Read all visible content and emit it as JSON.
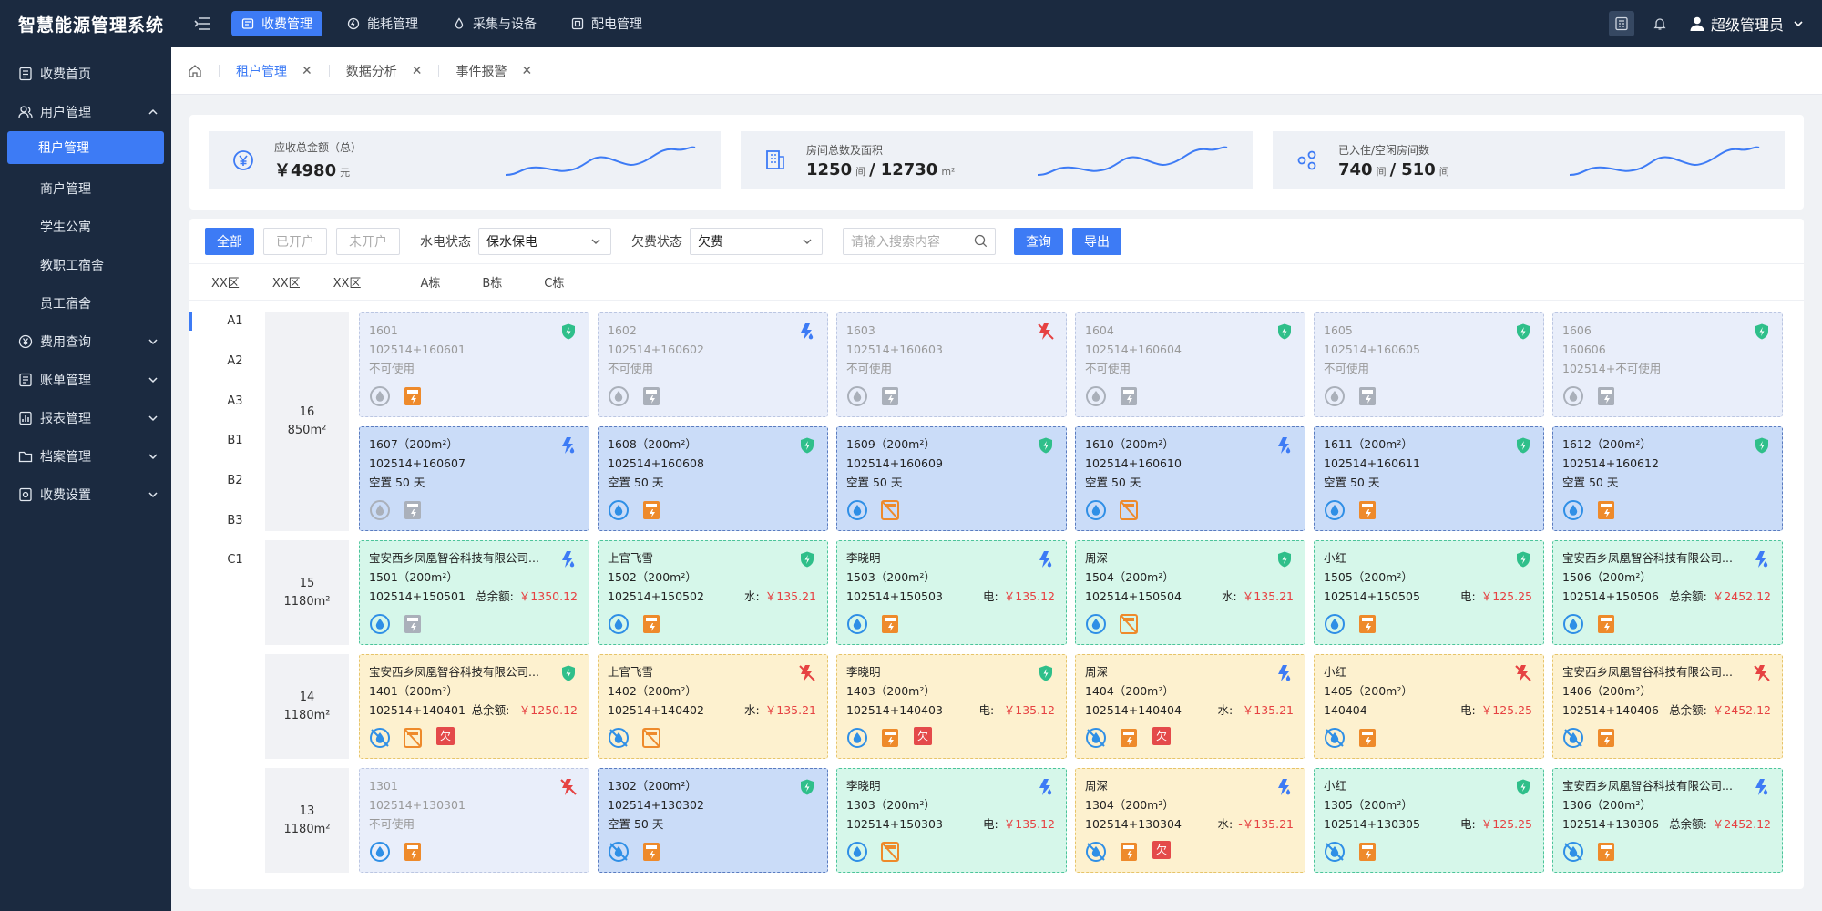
{
  "app": {
    "title": "智慧能源管理系统"
  },
  "topnav": [
    {
      "label": "收费管理",
      "active": true
    },
    {
      "label": "能耗管理"
    },
    {
      "label": "采集与设备"
    },
    {
      "label": "配电管理"
    }
  ],
  "user": {
    "name": "超级管理员"
  },
  "sidebar": {
    "items": [
      {
        "label": "收费首页",
        "icon": "calculator-icon"
      },
      {
        "label": "用户管理",
        "icon": "users-icon",
        "expanded": true,
        "children": [
          {
            "label": "租户管理",
            "active": true
          },
          {
            "label": "商户管理"
          },
          {
            "label": "学生公寓"
          },
          {
            "label": "教职工宿舍"
          },
          {
            "label": "员工宿舍"
          }
        ]
      },
      {
        "label": "费用查询",
        "icon": "yen-circle-icon",
        "collapsible": true
      },
      {
        "label": "账单管理",
        "icon": "bill-icon",
        "collapsible": true
      },
      {
        "label": "报表管理",
        "icon": "report-icon",
        "collapsible": true
      },
      {
        "label": "档案管理",
        "icon": "folder-icon",
        "collapsible": true
      },
      {
        "label": "收费设置",
        "icon": "settings-icon",
        "collapsible": true
      }
    ]
  },
  "tabs": [
    {
      "label": "租户管理",
      "active": true
    },
    {
      "label": "数据分析"
    },
    {
      "label": "事件报警"
    }
  ],
  "stats": [
    {
      "label": "应收总金额（总）",
      "prefix": "￥",
      "value": "4980",
      "unit": "元",
      "icon": "yen-icon"
    },
    {
      "label": "房间总数及面积",
      "value": "1250",
      "unit": "间",
      "sep": "/",
      "value2": "12730",
      "unit2": "m²",
      "icon": "building-icon"
    },
    {
      "label": "已入住/空闲房间数",
      "value": "740",
      "unit": "间",
      "sep": "/",
      "value2": "510",
      "unit2": "间",
      "icon": "rooms-icon"
    }
  ],
  "filters": {
    "all": "全部",
    "opened": "已开户",
    "unopened": "未开户",
    "water_label": "水电状态",
    "water_value": "保水保电",
    "fee_label": "欠费状态",
    "fee_value": "欠费",
    "search_placeholder": "请输入搜索内容",
    "query": "查询",
    "export": "导出"
  },
  "zones": [
    "XX区",
    "XX区",
    "XX区"
  ],
  "buildings": [
    "A栋",
    "B栋",
    "C栋"
  ],
  "rows": [
    "A1",
    "A2",
    "A3",
    "B1",
    "B2",
    "B3",
    "C1"
  ],
  "floors": [
    {
      "floor": "16",
      "area": "850m²"
    },
    {
      "floor": "15",
      "area": "1180m²"
    },
    {
      "floor": "14",
      "area": "1180m²"
    },
    {
      "floor": "13",
      "area": "1180m²"
    }
  ],
  "rooms": [
    [
      {
        "s": "idle",
        "l1": "1601",
        "l2": "102514+160601",
        "l3": "不可使用",
        "b": "shield",
        "i": [
          "gauge-gray",
          "meter-orange"
        ]
      },
      {
        "s": "idle",
        "l1": "1602",
        "l2": "102514+160602",
        "l3": "不可使用",
        "b": "bolt",
        "i": [
          "gauge-gray",
          "meter-gray"
        ]
      },
      {
        "s": "idle",
        "l1": "1603",
        "l2": "102514+160603",
        "l3": "不可使用",
        "b": "bolt-off",
        "i": [
          "gauge-gray",
          "meter-gray"
        ]
      },
      {
        "s": "idle",
        "l1": "1604",
        "l2": "102514+160604",
        "l3": "不可使用",
        "b": "shield",
        "i": [
          "gauge-gray",
          "meter-gray"
        ]
      },
      {
        "s": "idle",
        "l1": "1605",
        "l2": "102514+160605",
        "l3": "不可使用",
        "b": "shield",
        "i": [
          "gauge-gray",
          "meter-gray"
        ]
      },
      {
        "s": "idle",
        "l1": "1606",
        "l2": "160606",
        "l3": "102514+不可使用",
        "b": "shield",
        "i": [
          "gauge-gray",
          "meter-gray"
        ]
      }
    ],
    [
      {
        "s": "vac",
        "l1": "1607（200m²）",
        "l2": "102514+160607",
        "l3": "空置 50 天",
        "b": "bolt",
        "i": [
          "gauge-gray",
          "meter-gray"
        ]
      },
      {
        "s": "vac",
        "l1": "1608（200m²）",
        "l2": "102514+160608",
        "l3": "空置 50 天",
        "b": "shield",
        "i": [
          "gauge-blue",
          "meter-orange"
        ]
      },
      {
        "s": "vac",
        "l1": "1609（200m²）",
        "l2": "102514+160609",
        "l3": "空置 50 天",
        "b": "shield",
        "i": [
          "gauge-blue",
          "meter-off"
        ]
      },
      {
        "s": "vac",
        "l1": "1610（200m²）",
        "l2": "102514+160610",
        "l3": "空置 50 天",
        "b": "bolt",
        "i": [
          "gauge-blue",
          "meter-off"
        ]
      },
      {
        "s": "vac",
        "l1": "1611（200m²）",
        "l2": "102514+160611",
        "l3": "空置 50 天",
        "b": "shield",
        "i": [
          "gauge-blue",
          "meter-orange"
        ]
      },
      {
        "s": "vac",
        "l1": "1612（200m²）",
        "l2": "102514+160612",
        "l3": "空置 50 天",
        "b": "shield",
        "i": [
          "gauge-blue",
          "meter-orange"
        ]
      }
    ],
    [
      {
        "s": "occ",
        "l1": "宝安西乡凤凰智谷科技有限公司...",
        "l2": "1501（200m²）",
        "l3": "102514+150501",
        "ak": "总余额:",
        "av": "￥1350.12",
        "b": "bolt",
        "i": [
          "gauge-blue",
          "meter-gray"
        ]
      },
      {
        "s": "occ",
        "l1": "上官飞雪",
        "l2": "1502（200m²）",
        "l3": "102514+150502",
        "ak": "水:",
        "av": "￥135.21",
        "b": "shield",
        "i": [
          "gauge-blue",
          "meter-orange"
        ]
      },
      {
        "s": "occ",
        "l1": "李晓明",
        "l2": "1503（200m²）",
        "l3": "102514+150503",
        "ak": "电:",
        "av": "￥135.12",
        "b": "bolt",
        "i": [
          "gauge-blue",
          "meter-orange"
        ]
      },
      {
        "s": "occ",
        "l1": "周深",
        "l2": "1504（200m²）",
        "l3": "102514+150504",
        "ak": "水:",
        "av": "￥135.21",
        "b": "shield",
        "i": [
          "gauge-blue",
          "meter-off"
        ]
      },
      {
        "s": "occ",
        "l1": "小红",
        "l2": "1505（200m²）",
        "l3": "102514+150505",
        "ak": "电:",
        "av": "￥125.25",
        "b": "shield",
        "i": [
          "gauge-blue",
          "meter-orange"
        ]
      },
      {
        "s": "occ",
        "l1": "宝安西乡凤凰智谷科技有限公司...",
        "l2": "1506（200m²）",
        "l3": "102514+150506",
        "ak": "总余额:",
        "av": "￥2452.12",
        "b": "bolt",
        "i": [
          "gauge-blue",
          "meter-orange"
        ]
      }
    ],
    [
      {
        "s": "due",
        "l1": "宝安西乡凤凰智谷科技有限公司...",
        "l2": "1401（200m²）",
        "l3": "102514+140401",
        "ak": "总余额:",
        "av": "-￥1250.12",
        "b": "shield",
        "i": [
          "gauge-off",
          "meter-off",
          "owe"
        ]
      },
      {
        "s": "due",
        "l1": "上官飞雪",
        "l2": "1402（200m²）",
        "l3": "102514+140402",
        "ak": "水:",
        "av": "￥135.21",
        "b": "bolt-off",
        "i": [
          "gauge-off",
          "meter-off"
        ]
      },
      {
        "s": "due",
        "l1": "李晓明",
        "l2": "1403（200m²）",
        "l3": "102514+140403",
        "ak": "电:",
        "av": "-￥135.12",
        "b": "shield",
        "i": [
          "gauge-blue",
          "meter-orange",
          "owe"
        ]
      },
      {
        "s": "due",
        "l1": "周深",
        "l2": "1404（200m²）",
        "l3": "102514+140404",
        "ak": "水:",
        "av": "-￥135.21",
        "b": "bolt",
        "i": [
          "gauge-off",
          "meter-orange",
          "owe"
        ]
      },
      {
        "s": "due",
        "l1": "小红",
        "l2": "1405（200m²）",
        "l3": "140404",
        "ak": "电:",
        "av": "￥125.25",
        "b": "bolt-off",
        "i": [
          "gauge-off",
          "meter-orange"
        ]
      },
      {
        "s": "due",
        "l1": "宝安西乡凤凰智谷科技有限公司...",
        "l2": "1406（200m²）",
        "l3": "102514+140406",
        "ak": "总余额:",
        "av": "￥2452.12",
        "b": "bolt-off",
        "i": [
          "gauge-off",
          "meter-orange"
        ]
      }
    ],
    [
      {
        "s": "idle",
        "l1": "1301",
        "l2": "102514+130301",
        "l3": "不可使用",
        "b": "bolt-off",
        "i": [
          "gauge-blue",
          "meter-orange"
        ]
      },
      {
        "s": "vac",
        "l1": "1302（200m²）",
        "l2": "102514+130302",
        "l3": "空置 50 天",
        "b": "shield",
        "i": [
          "gauge-off",
          "meter-orange"
        ]
      },
      {
        "s": "occ",
        "l1": "李晓明",
        "l2": "1303（200m²）",
        "l3": "102514+150303",
        "ak": "电:",
        "av": "￥135.12",
        "b": "bolt",
        "i": [
          "gauge-blue",
          "meter-off"
        ]
      },
      {
        "s": "due",
        "l1": "周深",
        "l2": "1304（200m²）",
        "l3": "102514+130304",
        "ak": "水:",
        "av": "-￥135.21",
        "b": "bolt",
        "i": [
          "gauge-off",
          "meter-orange",
          "owe"
        ]
      },
      {
        "s": "occ",
        "l1": "小红",
        "l2": "1305（200m²）",
        "l3": "102514+130305",
        "ak": "电:",
        "av": "￥125.25",
        "b": "shield",
        "i": [
          "gauge-off",
          "meter-orange"
        ]
      },
      {
        "s": "occ",
        "l1": "宝安西乡凤凰智谷科技有限公司...",
        "l2": "1306（200m²）",
        "l3": "102514+130306",
        "ak": "总余额:",
        "av": "￥2452.12",
        "b": "bolt",
        "i": [
          "gauge-off",
          "meter-orange"
        ]
      }
    ]
  ],
  "owe_label": "欠",
  "colors": {
    "primary": "#3d7bf5",
    "sidebar": "#1b2a40",
    "danger": "#e64242",
    "meter": "#ee8a2b",
    "shield": "#2fbf8a"
  }
}
